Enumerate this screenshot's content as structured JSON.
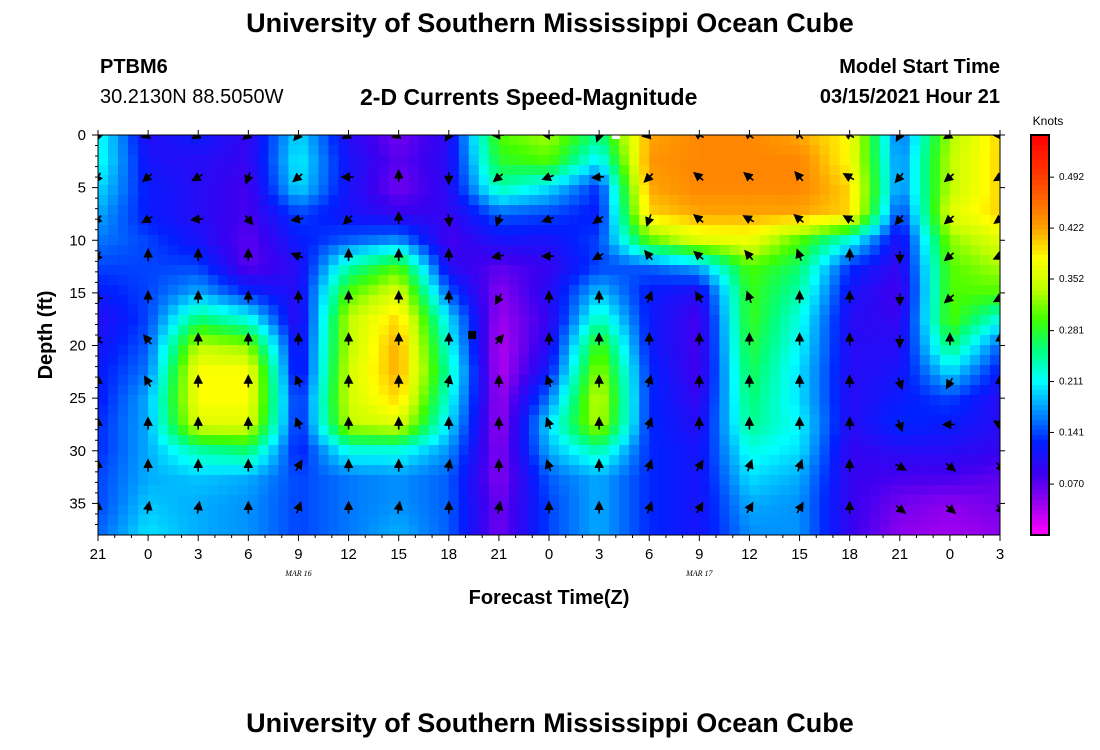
{
  "page": {
    "title": "University of Southern Mississippi Ocean Cube",
    "footer_title": "University of Southern Mississippi Ocean Cube",
    "station_id": "PTBM6",
    "station_coords": "30.2130N 88.5050W",
    "model_start_label": "Model Start Time",
    "model_start_value": "03/15/2021 Hour 21"
  },
  "chart_data": {
    "type": "heatmap",
    "title": "2-D Currents Speed-Magnitude",
    "xlabel": "Forecast Time(Z)",
    "ylabel": "Depth (ft)",
    "x_ticks": [
      "21",
      "0",
      "3",
      "6",
      "9",
      "12",
      "15",
      "18",
      "21",
      "0",
      "3",
      "6",
      "9",
      "12",
      "15",
      "18",
      "21",
      "0",
      "3"
    ],
    "x_tick_hours": [
      0,
      3,
      6,
      9,
      12,
      15,
      18,
      21,
      24,
      27,
      30,
      33,
      36,
      39,
      42,
      45,
      48,
      51,
      54
    ],
    "date_labels": [
      {
        "label": "MAR 16",
        "hour": 12
      },
      {
        "label": "MAR 17",
        "hour": 36
      }
    ],
    "y_ticks": [
      0,
      5,
      10,
      15,
      20,
      25,
      30,
      35
    ],
    "ylim": [
      0,
      38
    ],
    "xlim_hours": [
      0,
      54
    ],
    "colorbar": {
      "title": "Knots",
      "ticks": [
        0.492,
        0.422,
        0.352,
        0.281,
        0.211,
        0.141,
        0.07
      ],
      "range": [
        0.0,
        0.55
      ],
      "colors": [
        "#ff00ff",
        "#9a00ee",
        "#3c00f0",
        "#0020ff",
        "#0090ff",
        "#00ffff",
        "#00ff80",
        "#40ff00",
        "#c0ff00",
        "#ffff00",
        "#ffa000",
        "#ff6000",
        "#ff2a00",
        "#ff0000"
      ]
    },
    "depths_ft": [
      0,
      2.5,
      5,
      7.5,
      10,
      12.5,
      15,
      17.5,
      20,
      22.5,
      25,
      27.5,
      30,
      32.5,
      35,
      37.5
    ],
    "hours": [
      0,
      3,
      6,
      9,
      12,
      15,
      18,
      21,
      24,
      27,
      30,
      33,
      36,
      39,
      42,
      45,
      48,
      51,
      54
    ],
    "speed_knots": [
      [
        0.22,
        0.1,
        0.12,
        0.09,
        0.2,
        0.1,
        0.06,
        0.1,
        0.3,
        0.33,
        0.25,
        0.42,
        0.44,
        0.44,
        0.42,
        0.38,
        0.15,
        0.33,
        0.4
      ],
      [
        0.22,
        0.11,
        0.1,
        0.09,
        0.21,
        0.11,
        0.07,
        0.1,
        0.28,
        0.3,
        0.2,
        0.43,
        0.44,
        0.44,
        0.44,
        0.38,
        0.16,
        0.34,
        0.4
      ],
      [
        0.2,
        0.12,
        0.1,
        0.08,
        0.2,
        0.11,
        0.06,
        0.1,
        0.24,
        0.2,
        0.13,
        0.42,
        0.44,
        0.44,
        0.44,
        0.4,
        0.16,
        0.34,
        0.4
      ],
      [
        0.18,
        0.12,
        0.1,
        0.08,
        0.14,
        0.11,
        0.09,
        0.09,
        0.15,
        0.14,
        0.12,
        0.4,
        0.42,
        0.42,
        0.42,
        0.4,
        0.13,
        0.36,
        0.4
      ],
      [
        0.16,
        0.14,
        0.11,
        0.07,
        0.12,
        0.15,
        0.17,
        0.08,
        0.11,
        0.11,
        0.14,
        0.3,
        0.36,
        0.37,
        0.3,
        0.22,
        0.1,
        0.32,
        0.36
      ],
      [
        0.14,
        0.14,
        0.14,
        0.07,
        0.1,
        0.24,
        0.3,
        0.1,
        0.07,
        0.09,
        0.14,
        0.15,
        0.18,
        0.3,
        0.26,
        0.13,
        0.09,
        0.3,
        0.33
      ],
      [
        0.12,
        0.14,
        0.18,
        0.13,
        0.1,
        0.3,
        0.36,
        0.15,
        0.05,
        0.1,
        0.19,
        0.12,
        0.1,
        0.29,
        0.24,
        0.11,
        0.08,
        0.3,
        0.3
      ],
      [
        0.1,
        0.14,
        0.26,
        0.22,
        0.09,
        0.34,
        0.4,
        0.2,
        0.04,
        0.09,
        0.24,
        0.12,
        0.08,
        0.29,
        0.22,
        0.1,
        0.09,
        0.3,
        0.22
      ],
      [
        0.11,
        0.15,
        0.34,
        0.32,
        0.1,
        0.34,
        0.42,
        0.22,
        0.03,
        0.1,
        0.3,
        0.12,
        0.08,
        0.28,
        0.21,
        0.1,
        0.1,
        0.26,
        0.15
      ],
      [
        0.12,
        0.16,
        0.38,
        0.38,
        0.1,
        0.35,
        0.42,
        0.24,
        0.03,
        0.12,
        0.33,
        0.13,
        0.08,
        0.27,
        0.2,
        0.1,
        0.11,
        0.2,
        0.12
      ],
      [
        0.12,
        0.18,
        0.38,
        0.38,
        0.12,
        0.35,
        0.4,
        0.22,
        0.04,
        0.16,
        0.35,
        0.13,
        0.09,
        0.26,
        0.2,
        0.1,
        0.12,
        0.14,
        0.1
      ],
      [
        0.13,
        0.18,
        0.36,
        0.36,
        0.12,
        0.34,
        0.36,
        0.2,
        0.04,
        0.2,
        0.34,
        0.13,
        0.1,
        0.25,
        0.21,
        0.1,
        0.13,
        0.12,
        0.1
      ],
      [
        0.13,
        0.18,
        0.24,
        0.26,
        0.12,
        0.22,
        0.22,
        0.17,
        0.05,
        0.18,
        0.24,
        0.13,
        0.11,
        0.22,
        0.2,
        0.09,
        0.1,
        0.1,
        0.09
      ],
      [
        0.14,
        0.18,
        0.19,
        0.18,
        0.14,
        0.16,
        0.17,
        0.15,
        0.05,
        0.15,
        0.18,
        0.13,
        0.11,
        0.2,
        0.18,
        0.09,
        0.08,
        0.08,
        0.07
      ],
      [
        0.14,
        0.19,
        0.18,
        0.17,
        0.14,
        0.16,
        0.17,
        0.15,
        0.06,
        0.14,
        0.18,
        0.13,
        0.11,
        0.18,
        0.17,
        0.09,
        0.06,
        0.05,
        0.06
      ],
      [
        0.15,
        0.2,
        0.18,
        0.17,
        0.14,
        0.16,
        0.18,
        0.15,
        0.06,
        0.14,
        0.18,
        0.13,
        0.11,
        0.17,
        0.17,
        0.09,
        0.05,
        0.04,
        0.05
      ]
    ],
    "vector_depths_ft": [
      0,
      4,
      8,
      11.5,
      15.5,
      19.5,
      23.5,
      27.5,
      31.5,
      35.5
    ],
    "vector_angles_deg": [
      [
        200,
        250,
        240,
        230,
        220,
        240,
        250,
        210,
        270,
        275,
        200,
        260,
        300,
        310,
        320,
        300,
        210,
        240,
        270
      ],
      [
        210,
        230,
        240,
        200,
        230,
        270,
        0,
        180,
        230,
        250,
        265,
        225,
        310,
        310,
        320,
        300,
        220,
        230,
        240
      ],
      [
        220,
        240,
        265,
        140,
        260,
        225,
        0,
        175,
        200,
        250,
        235,
        200,
        310,
        300,
        310,
        300,
        220,
        230,
        235
      ],
      [
        210,
        0,
        0,
        0,
        290,
        0,
        0,
        0,
        260,
        270,
        240,
        320,
        310,
        320,
        340,
        0,
        180,
        230,
        245
      ],
      [
        270,
        0,
        0,
        0,
        0,
        0,
        0,
        0,
        210,
        0,
        0,
        20,
        330,
        340,
        0,
        0,
        180,
        230,
        240
      ],
      [
        300,
        320,
        0,
        0,
        0,
        0,
        0,
        0,
        40,
        0,
        0,
        0,
        0,
        0,
        0,
        0,
        180,
        0,
        0
      ],
      [
        0,
        330,
        0,
        0,
        340,
        0,
        0,
        10,
        0,
        340,
        0,
        15,
        0,
        0,
        0,
        0,
        160,
        210,
        0
      ],
      [
        0,
        0,
        0,
        0,
        340,
        0,
        0,
        0,
        0,
        340,
        0,
        20,
        0,
        0,
        0,
        0,
        160,
        270,
        300
      ],
      [
        0,
        0,
        0,
        0,
        30,
        0,
        0,
        10,
        0,
        340,
        0,
        20,
        30,
        20,
        20,
        0,
        120,
        130,
        140
      ],
      [
        0,
        10,
        10,
        0,
        20,
        0,
        10,
        0,
        10,
        0,
        0,
        20,
        30,
        30,
        30,
        0,
        130,
        130,
        140
      ]
    ],
    "markers": [
      {
        "shape": "square",
        "hour": 22.4,
        "depth": 19,
        "color": "#000000"
      },
      {
        "shape": "square",
        "hour": 31,
        "depth": 0,
        "color": "#ffffff"
      }
    ]
  }
}
